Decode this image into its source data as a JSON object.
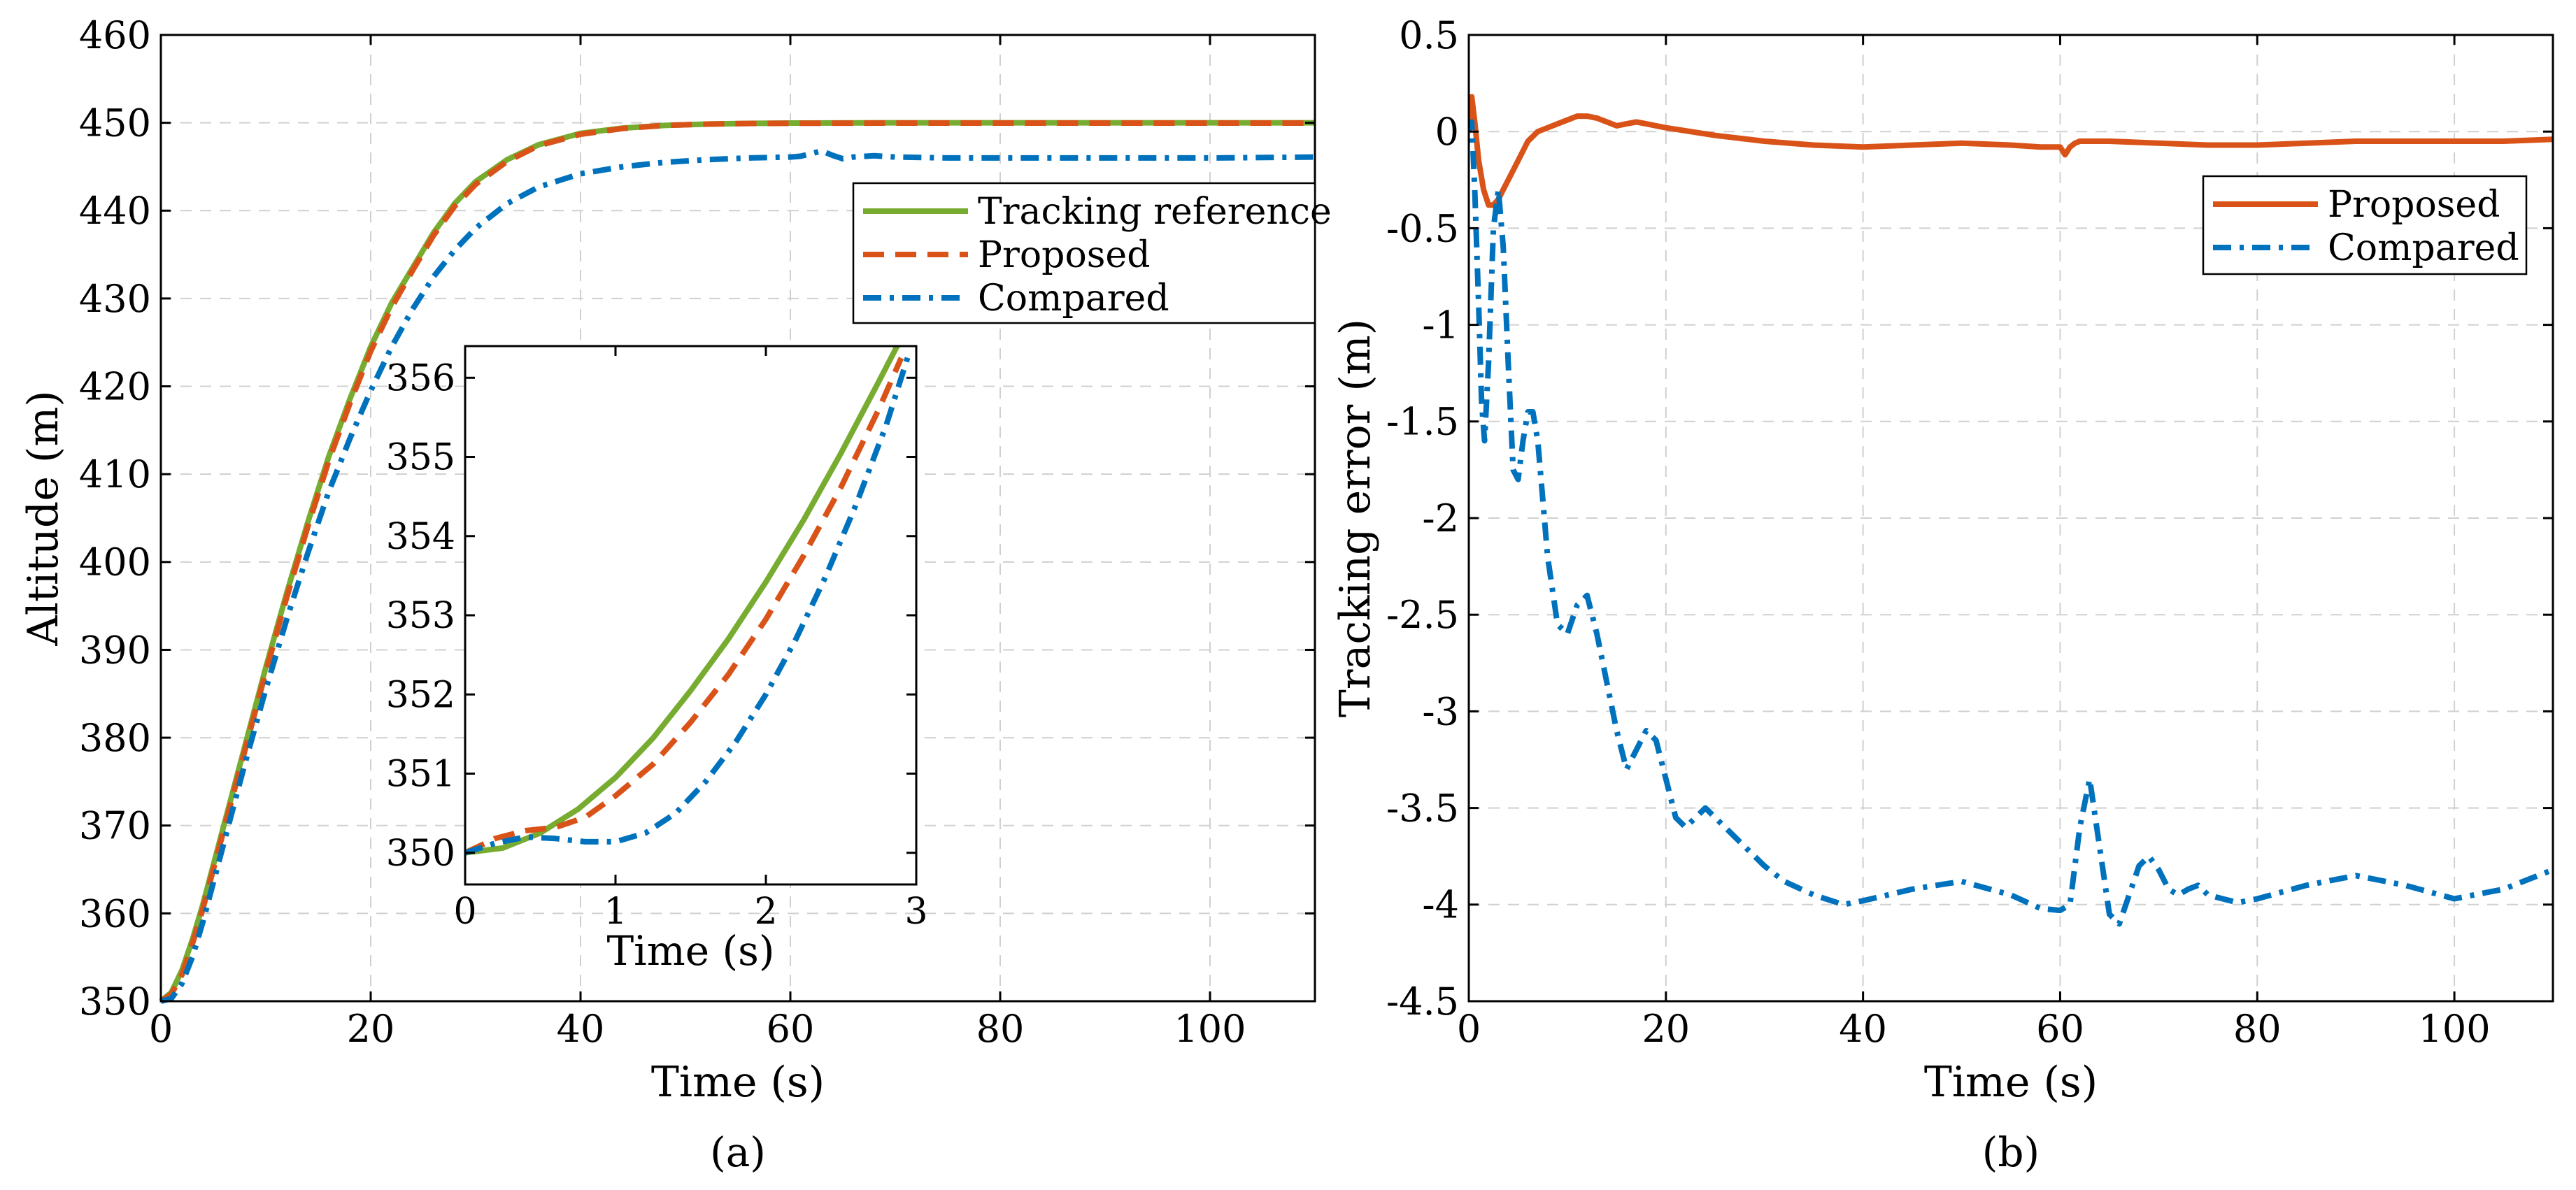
{
  "colors": {
    "reference": "#77AC30",
    "proposed": "#D95319",
    "compared": "#0072BD",
    "grid": "#d0d0d0",
    "axis": "#000000"
  },
  "chart_data": [
    {
      "id": "a",
      "type": "line",
      "caption": "(a)",
      "xlabel": "Time (s)",
      "ylabel": "Altitude (m)",
      "xlim": [
        0,
        110
      ],
      "ylim": [
        350,
        460
      ],
      "xticks": [
        0,
        20,
        40,
        60,
        80,
        100
      ],
      "yticks": [
        350,
        360,
        370,
        380,
        390,
        400,
        410,
        420,
        430,
        440,
        450,
        460
      ],
      "grid": true,
      "legend_position": "right",
      "legend": [
        "Tracking reference",
        "Proposed",
        "Compared"
      ],
      "series": [
        {
          "name": "Tracking reference",
          "style": "solid",
          "color": "#77AC30",
          "x": [
            0,
            1,
            2,
            3,
            4,
            5,
            6,
            8,
            10,
            12,
            14,
            16,
            18,
            20,
            22,
            24,
            26,
            28,
            30,
            33,
            36,
            40,
            44,
            48,
            52,
            56,
            60,
            70,
            80,
            90,
            100,
            110
          ],
          "y": [
            350,
            351,
            353.5,
            357,
            361,
            365.5,
            370,
            379,
            388,
            396.5,
            404.5,
            412,
            418.5,
            424.5,
            429.5,
            433.5,
            437.5,
            440.8,
            443.3,
            445.8,
            447.5,
            448.8,
            449.4,
            449.7,
            449.85,
            449.93,
            449.97,
            450,
            450,
            450,
            450,
            450
          ]
        },
        {
          "name": "Proposed",
          "style": "dashed",
          "color": "#D95319",
          "x": [
            0,
            1,
            2,
            3,
            4,
            5,
            6,
            8,
            10,
            12,
            14,
            16,
            18,
            20,
            22,
            24,
            26,
            28,
            30,
            33,
            36,
            40,
            44,
            48,
            52,
            56,
            60,
            70,
            80,
            90,
            100,
            110
          ],
          "y": [
            350,
            350.8,
            353,
            356.5,
            360.5,
            365,
            369.5,
            378.5,
            387.5,
            396,
            404,
            411.5,
            418,
            424,
            429,
            433.2,
            437.2,
            440.5,
            443,
            445.6,
            447.4,
            448.7,
            449.35,
            449.7,
            449.85,
            449.92,
            449.95,
            449.97,
            449.97,
            449.97,
            449.97,
            449.97
          ]
        },
        {
          "name": "Compared",
          "style": "dashdot",
          "color": "#0072BD",
          "x": [
            0,
            1,
            2,
            3,
            4,
            5,
            6,
            8,
            10,
            12,
            14,
            16,
            18,
            20,
            22,
            24,
            26,
            28,
            30,
            33,
            36,
            40,
            44,
            48,
            52,
            56,
            60,
            61,
            62,
            63,
            64,
            65,
            66,
            68,
            70,
            75,
            80,
            90,
            100,
            110
          ],
          "y": [
            350,
            350.3,
            352,
            355,
            359,
            363.5,
            368,
            377,
            385.5,
            393.5,
            401,
            408,
            414,
            419.5,
            424.5,
            428.8,
            432.5,
            435.5,
            438,
            440.8,
            442.7,
            444.2,
            445,
            445.5,
            445.8,
            446,
            446.1,
            446.2,
            446.5,
            446.8,
            446.3,
            445.9,
            446.1,
            446.25,
            446.1,
            446,
            446,
            446,
            446,
            446.1
          ]
        }
      ],
      "inset": {
        "xlabel": "Time (s)",
        "xlim": [
          0,
          3
        ],
        "ylim": [
          349.6,
          356.4
        ],
        "xticks": [
          0,
          1,
          2,
          3
        ],
        "yticks": [
          350,
          351,
          352,
          353,
          354,
          355,
          356
        ],
        "series": [
          {
            "name": "Tracking reference",
            "style": "solid",
            "color": "#77AC30",
            "x": [
              0,
              0.25,
              0.5,
              0.75,
              1.0,
              1.25,
              1.5,
              1.75,
              2.0,
              2.25,
              2.5,
              2.75,
              2.9
            ],
            "y": [
              350,
              350.06,
              350.25,
              350.55,
              350.95,
              351.45,
              352.05,
              352.7,
              353.42,
              354.2,
              355.05,
              355.95,
              356.5
            ]
          },
          {
            "name": "Proposed",
            "style": "dashed",
            "color": "#D95319",
            "x": [
              0,
              0.2,
              0.4,
              0.6,
              0.8,
              1.0,
              1.25,
              1.5,
              1.75,
              2.0,
              2.25,
              2.5,
              2.75,
              2.9
            ],
            "y": [
              350,
              350.18,
              350.28,
              350.32,
              350.45,
              350.72,
              351.12,
              351.65,
              352.25,
              352.95,
              353.75,
              354.62,
              355.6,
              356.25
            ]
          },
          {
            "name": "Compared",
            "style": "dashdot",
            "color": "#0072BD",
            "x": [
              0,
              0.2,
              0.4,
              0.6,
              0.8,
              1.0,
              1.2,
              1.4,
              1.6,
              1.8,
              2.0,
              2.2,
              2.4,
              2.6,
              2.8,
              2.95
            ],
            "y": [
              350,
              350.12,
              350.2,
              350.18,
              350.14,
              350.14,
              350.25,
              350.5,
              350.9,
              351.4,
              352.0,
              352.7,
              353.5,
              354.4,
              355.4,
              356.3
            ]
          }
        ]
      }
    },
    {
      "id": "b",
      "type": "line",
      "caption": "(b)",
      "xlabel": "Time (s)",
      "ylabel": "Tracking error (m)",
      "xlim": [
        0,
        110
      ],
      "ylim": [
        -4.5,
        0.5
      ],
      "xticks": [
        0,
        20,
        40,
        60,
        80,
        100
      ],
      "yticks": [
        0.5,
        0,
        -0.5,
        -1,
        -1.5,
        -2,
        -2.5,
        -3,
        -3.5,
        -4,
        -4.5
      ],
      "ytick_labels": [
        "0.5",
        "0",
        "-0.5",
        "-1",
        "-1.5",
        "-2",
        "-2.5",
        "-3",
        "-3.5",
        "-4",
        "-4.5"
      ],
      "grid": true,
      "legend_position": "top-right",
      "legend": [
        "Proposed",
        "Compared"
      ],
      "series": [
        {
          "name": "Proposed",
          "style": "solid",
          "color": "#D95319",
          "x": [
            0,
            0.3,
            0.6,
            1.0,
            1.5,
            2.0,
            2.5,
            3.0,
            3.5,
            4.0,
            5.0,
            6.0,
            7.0,
            8.0,
            9.0,
            10,
            11,
            12,
            13,
            14,
            15,
            16,
            17,
            18,
            19,
            20,
            25,
            30,
            35,
            40,
            45,
            50,
            55,
            58,
            60,
            60.5,
            61,
            61.5,
            62,
            63,
            65,
            70,
            75,
            80,
            85,
            90,
            95,
            100,
            105,
            110
          ],
          "y": [
            0,
            0.18,
            0.05,
            -0.15,
            -0.3,
            -0.38,
            -0.38,
            -0.35,
            -0.3,
            -0.25,
            -0.15,
            -0.05,
            0.0,
            0.02,
            0.04,
            0.06,
            0.08,
            0.08,
            0.07,
            0.05,
            0.03,
            0.04,
            0.05,
            0.04,
            0.03,
            0.02,
            -0.02,
            -0.05,
            -0.07,
            -0.08,
            -0.07,
            -0.06,
            -0.07,
            -0.08,
            -0.08,
            -0.12,
            -0.08,
            -0.06,
            -0.05,
            -0.05,
            -0.05,
            -0.06,
            -0.07,
            -0.07,
            -0.06,
            -0.05,
            -0.05,
            -0.05,
            -0.05,
            -0.04
          ]
        },
        {
          "name": "Compared",
          "style": "dashdot",
          "color": "#0072BD",
          "x": [
            0,
            0.3,
            0.6,
            1.0,
            1.3,
            1.6,
            2.0,
            2.5,
            3.0,
            3.5,
            4.0,
            4.5,
            5.0,
            5.5,
            6.0,
            6.5,
            7.0,
            7.5,
            8.0,
            9.0,
            10,
            11,
            12,
            13,
            14,
            15,
            16,
            17,
            18,
            19,
            20,
            21,
            22,
            23,
            24,
            25,
            26,
            27,
            28,
            30,
            32,
            35,
            38,
            40,
            45,
            50,
            55,
            58,
            60,
            61,
            62,
            63,
            64,
            65,
            66,
            67,
            68,
            69,
            70,
            71,
            72,
            73,
            74,
            75,
            78,
            80,
            85,
            90,
            95,
            100,
            105,
            110
          ],
          "y": [
            0,
            0.05,
            -0.3,
            -0.9,
            -1.4,
            -1.6,
            -1.2,
            -0.5,
            -0.3,
            -0.6,
            -1.2,
            -1.75,
            -1.8,
            -1.6,
            -1.45,
            -1.45,
            -1.6,
            -1.9,
            -2.2,
            -2.55,
            -2.6,
            -2.45,
            -2.4,
            -2.6,
            -2.85,
            -3.1,
            -3.3,
            -3.2,
            -3.1,
            -3.15,
            -3.35,
            -3.55,
            -3.6,
            -3.55,
            -3.5,
            -3.55,
            -3.6,
            -3.65,
            -3.7,
            -3.8,
            -3.88,
            -3.95,
            -4.0,
            -3.98,
            -3.92,
            -3.88,
            -3.95,
            -4.02,
            -4.03,
            -4.0,
            -3.6,
            -3.35,
            -3.7,
            -4.05,
            -4.1,
            -3.95,
            -3.8,
            -3.75,
            -3.82,
            -3.92,
            -3.95,
            -3.92,
            -3.9,
            -3.95,
            -3.99,
            -3.97,
            -3.9,
            -3.85,
            -3.9,
            -3.97,
            -3.92,
            -3.82
          ]
        }
      ]
    }
  ]
}
